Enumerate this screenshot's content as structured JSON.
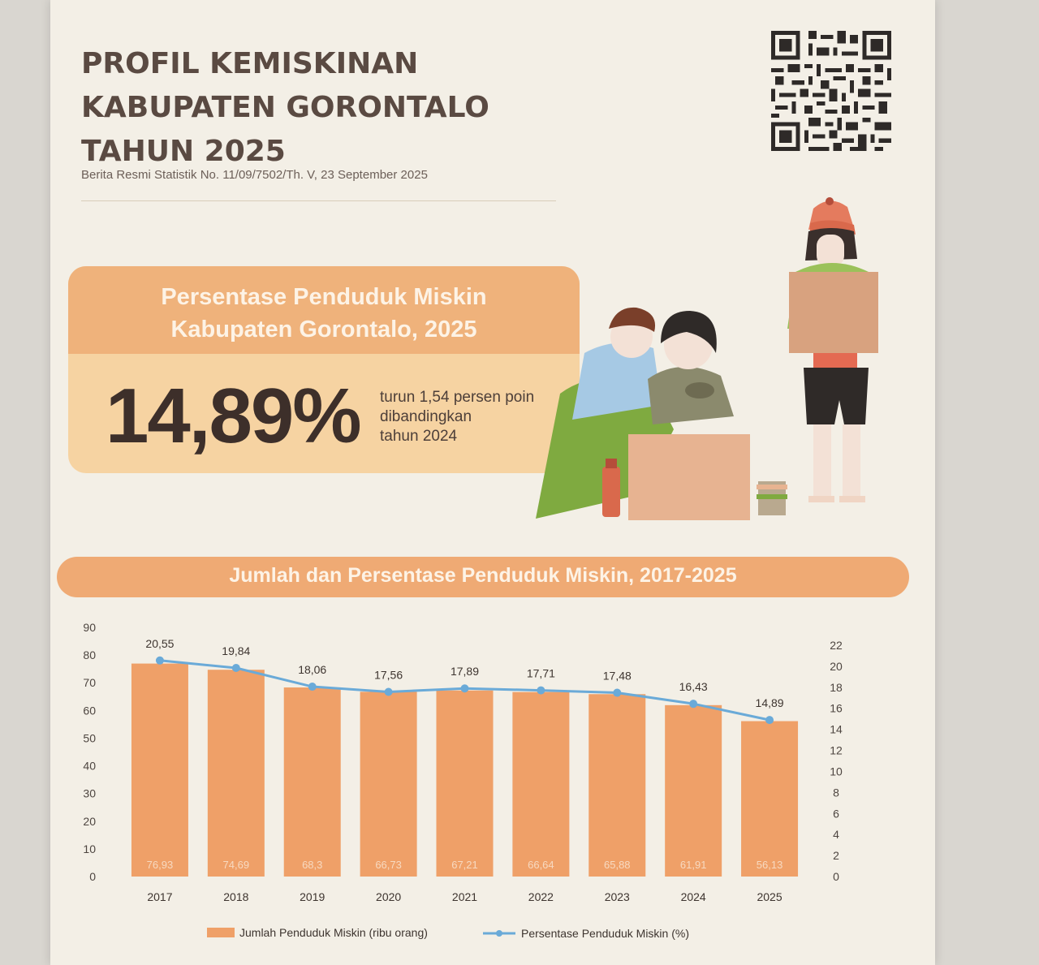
{
  "header": {
    "title_lines": [
      "PROFIL KEMISKINAN",
      "KABUPATEN GORONTALO",
      "TAHUN 2025"
    ],
    "subtitle": "Berita Resmi Statistik No. 11/09/7502/Th. V, 23 September 2025"
  },
  "highlight": {
    "heading_lines": [
      "Persentase Penduduk Miskin",
      "Kabupaten Gorontalo, 2025"
    ],
    "value": "14,89%",
    "note_lines": [
      "turun 1,54 persen poin",
      "dibandingkan",
      "tahun 2024"
    ]
  },
  "colors": {
    "bar": "#efa068",
    "line": "#6aaad8",
    "header_bar": "#efaa74",
    "highlight_head": "#efb27b",
    "highlight_body": "#f6d3a2"
  },
  "chart_data": {
    "type": "bar",
    "title": "Jumlah dan Persentase Penduduk Miskin, 2017-2025",
    "categories": [
      "2017",
      "2018",
      "2019",
      "2020",
      "2021",
      "2022",
      "2023",
      "2024",
      "2025"
    ],
    "series": [
      {
        "name": "Jumlah Penduduk Miskin (ribu orang)",
        "type": "bar",
        "axis": "left",
        "values": [
          76.93,
          74.69,
          68.3,
          66.73,
          67.21,
          66.64,
          65.88,
          61.91,
          56.13
        ],
        "labels": [
          "76,93",
          "74,69",
          "68,3",
          "66,73",
          "67,21",
          "66,64",
          "65,88",
          "61,91",
          "56,13"
        ]
      },
      {
        "name": "Persentase Penduduk Miskin (%)",
        "type": "line",
        "axis": "right",
        "values": [
          20.55,
          19.84,
          18.06,
          17.56,
          17.89,
          17.71,
          17.48,
          16.43,
          14.89
        ],
        "labels": [
          "20,55",
          "19,84",
          "18,06",
          "17,56",
          "17,89",
          "17,71",
          "17,48",
          "16,43",
          "14,89"
        ]
      }
    ],
    "y_left": {
      "min": 0,
      "max": 90,
      "ticks": [
        "0",
        "10",
        "20",
        "30",
        "40",
        "50",
        "60",
        "70",
        "80",
        "90"
      ]
    },
    "y_right": {
      "min": 0,
      "max": 22,
      "ticks": [
        "0",
        "2",
        "4",
        "6",
        "8",
        "10",
        "12",
        "14",
        "16",
        "18",
        "20",
        "22"
      ]
    },
    "grid": false,
    "legend_position": "bottom"
  }
}
